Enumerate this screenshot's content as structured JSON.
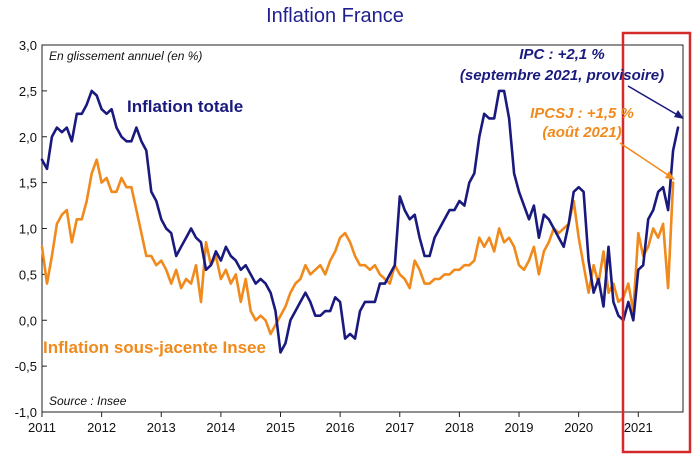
{
  "chart_data": {
    "type": "line",
    "title": "Inflation France",
    "subtitle": "En glissement annuel (en %)",
    "source": "Source : Insee",
    "xlabel": "",
    "ylabel": "",
    "xlim": [
      2011.0,
      2021.75
    ],
    "ylim": [
      -1.0,
      3.0
    ],
    "yticks": [
      "3,0",
      "2,5",
      "2,0",
      "1,5",
      "1,0",
      "0,5",
      "0,0",
      "-0,5",
      "-1,0"
    ],
    "xticks": [
      "2011",
      "2012",
      "2013",
      "2014",
      "2015",
      "2016",
      "2017",
      "2018",
      "2019",
      "2020",
      "2021"
    ],
    "colors": {
      "total": "#1a1a7e",
      "core": "#f08a1c",
      "highlight": "#d42a2a",
      "title": "#1f1f8f"
    },
    "series": [
      {
        "name": "Inflation totale",
        "start": "2011-01",
        "values": [
          1.75,
          1.65,
          2.0,
          2.1,
          2.05,
          2.1,
          1.95,
          2.25,
          2.25,
          2.35,
          2.5,
          2.45,
          2.3,
          2.25,
          2.3,
          2.1,
          2.0,
          1.95,
          1.95,
          2.1,
          1.95,
          1.85,
          1.4,
          1.3,
          1.1,
          1.0,
          0.95,
          0.7,
          0.8,
          0.9,
          1.0,
          0.9,
          0.85,
          0.55,
          0.6,
          0.75,
          0.65,
          0.8,
          0.7,
          0.65,
          0.55,
          0.6,
          0.5,
          0.4,
          0.45,
          0.4,
          0.3,
          0.1,
          -0.35,
          -0.25,
          0.0,
          0.1,
          0.2,
          0.3,
          0.2,
          0.05,
          0.05,
          0.1,
          0.1,
          0.25,
          0.2,
          -0.2,
          -0.15,
          -0.2,
          0.1,
          0.2,
          0.2,
          0.2,
          0.4,
          0.4,
          0.5,
          0.6,
          1.35,
          1.2,
          1.1,
          1.15,
          0.9,
          0.7,
          0.7,
          0.9,
          1.0,
          1.1,
          1.2,
          1.2,
          1.3,
          1.25,
          1.5,
          1.6,
          2.0,
          2.25,
          2.2,
          2.2,
          2.5,
          2.5,
          2.2,
          1.6,
          1.4,
          1.25,
          1.1,
          1.25,
          0.9,
          1.15,
          1.1,
          1.0,
          0.9,
          0.8,
          1.05,
          1.4,
          1.45,
          1.4,
          0.65,
          0.3,
          0.45,
          0.15,
          0.8,
          0.2,
          0.05,
          0.0,
          0.2,
          0.0,
          0.55,
          0.6,
          1.1,
          1.2,
          1.4,
          1.45,
          1.2,
          1.85,
          2.1
        ]
      },
      {
        "name": "Inflation sous-jacente Insee",
        "start": "2011-01",
        "values": [
          0.8,
          0.4,
          0.7,
          1.05,
          1.15,
          1.2,
          0.85,
          1.1,
          1.1,
          1.3,
          1.6,
          1.75,
          1.5,
          1.55,
          1.4,
          1.4,
          1.55,
          1.45,
          1.45,
          1.2,
          0.95,
          0.7,
          0.7,
          0.6,
          0.65,
          0.55,
          0.4,
          0.55,
          0.35,
          0.45,
          0.4,
          0.6,
          0.2,
          0.85,
          0.6,
          0.7,
          0.45,
          0.55,
          0.4,
          0.5,
          0.2,
          0.45,
          0.1,
          0.0,
          0.05,
          0.0,
          -0.15,
          -0.05,
          0.05,
          0.15,
          0.3,
          0.4,
          0.45,
          0.6,
          0.5,
          0.55,
          0.6,
          0.5,
          0.65,
          0.75,
          0.9,
          0.95,
          0.85,
          0.7,
          0.6,
          0.6,
          0.55,
          0.6,
          0.5,
          0.45,
          0.4,
          0.6,
          0.5,
          0.45,
          0.35,
          0.65,
          0.55,
          0.4,
          0.4,
          0.45,
          0.45,
          0.5,
          0.5,
          0.55,
          0.55,
          0.6,
          0.6,
          0.65,
          0.9,
          0.8,
          0.9,
          0.75,
          1.0,
          0.85,
          0.9,
          0.8,
          0.6,
          0.55,
          0.65,
          0.8,
          0.5,
          0.75,
          0.85,
          1.0,
          0.95,
          1.0,
          1.05,
          1.3,
          0.9,
          0.6,
          0.3,
          0.6,
          0.4,
          0.75,
          0.3,
          0.4,
          0.2,
          0.25,
          0.4,
          0.1,
          0.95,
          0.7,
          0.8,
          1.0,
          0.9,
          1.05,
          0.35,
          1.5
        ]
      }
    ],
    "annotations": {
      "total_label": "Inflation totale",
      "core_label": "Inflation sous-jacente Insee",
      "ipc_line1": "IPC : +2,1 %",
      "ipc_line2": "(septembre 2021, provisoire)",
      "ipcsj_line1": "IPCSJ : +1,5 %",
      "ipcsj_line2": "(août 2021)"
    }
  }
}
